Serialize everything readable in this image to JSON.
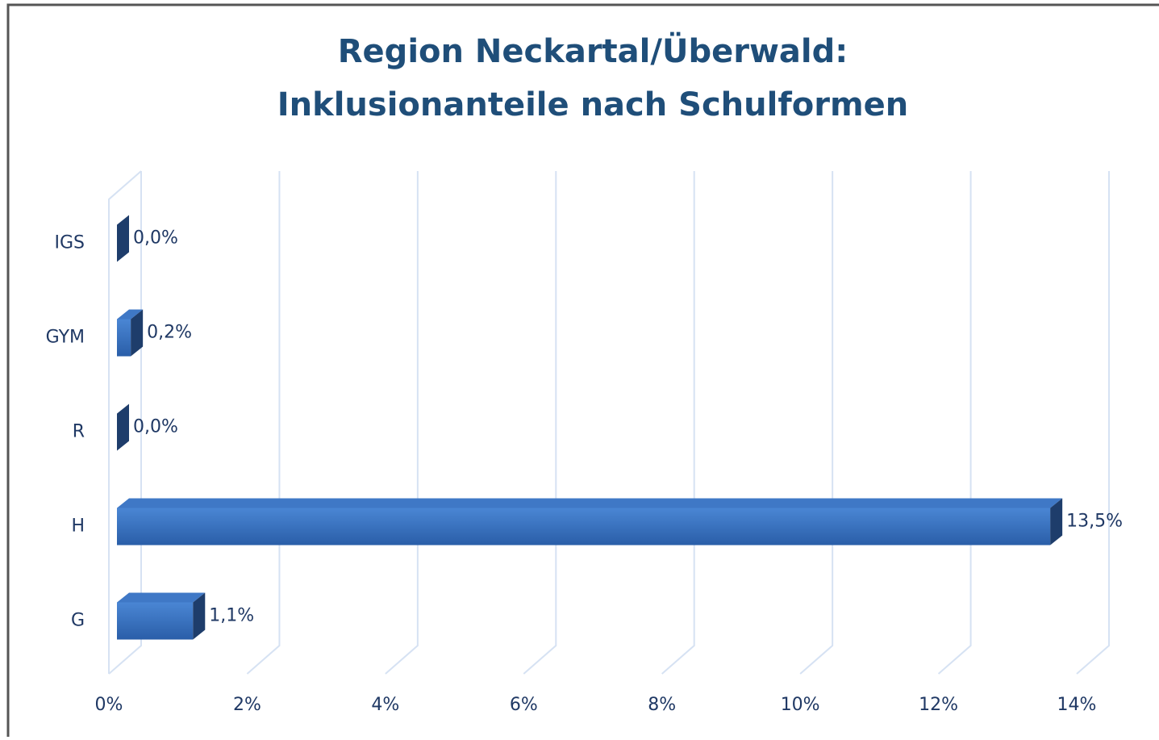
{
  "chart_data": {
    "type": "bar3d_horizontal",
    "title": [
      "Region Neckartal/Überwald:",
      "Inklusionanteile nach Schulformen"
    ],
    "categories": [
      "IGS",
      "GYM",
      "R",
      "H",
      "G"
    ],
    "values": [
      0.0,
      0.2,
      0.0,
      13.5,
      1.1
    ],
    "value_labels": [
      "0,0%",
      "0,2%",
      "0,0%",
      "13,5%",
      "1,1%"
    ],
    "color": "#2e6bbf",
    "xlim": [
      0,
      14
    ],
    "xticks": [
      {
        "value": 0,
        "label": "0%"
      },
      {
        "value": 2,
        "label": "2%"
      },
      {
        "value": 4,
        "label": "4%"
      },
      {
        "value": 6,
        "label": "6%"
      },
      {
        "value": 8,
        "label": "8%"
      },
      {
        "value": 10,
        "label": "10%"
      },
      {
        "value": 12,
        "label": "12%"
      },
      {
        "value": 14,
        "label": "14%"
      }
    ],
    "grid": true
  }
}
